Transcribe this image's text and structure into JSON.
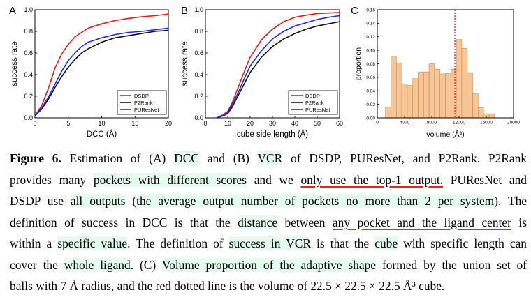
{
  "chart_data": [
    {
      "type": "line",
      "panel": "A",
      "xlabel": "DCC (Å)",
      "ylabel": "success rate",
      "xlim": [
        0,
        20
      ],
      "ylim": [
        0,
        1.0
      ],
      "xticks": [
        "0",
        "5",
        "10",
        "15",
        "20"
      ],
      "yticks": [
        "0.0",
        "0.2",
        "0.4",
        "0.6",
        "0.8",
        "1.0"
      ],
      "legend": "bottom-right",
      "series": [
        {
          "name": "DSDP",
          "color": "#e01b1b",
          "x": [
            0,
            1,
            2,
            3,
            4,
            5,
            6,
            7,
            8,
            10,
            12,
            14,
            16,
            18,
            20
          ],
          "y": [
            0.02,
            0.11,
            0.27,
            0.46,
            0.59,
            0.68,
            0.75,
            0.79,
            0.83,
            0.87,
            0.9,
            0.92,
            0.935,
            0.945,
            0.96
          ]
        },
        {
          "name": "P2Rank",
          "color": "#111111",
          "x": [
            0,
            1,
            2,
            3,
            4,
            5,
            6,
            7,
            8,
            10,
            12,
            14,
            16,
            18,
            20
          ],
          "y": [
            0.02,
            0.08,
            0.17,
            0.28,
            0.38,
            0.47,
            0.54,
            0.6,
            0.64,
            0.7,
            0.74,
            0.76,
            0.78,
            0.8,
            0.81
          ]
        },
        {
          "name": "PUResNet",
          "color": "#1f2bd6",
          "x": [
            0,
            1,
            2,
            3,
            4,
            5,
            6,
            7,
            8,
            10,
            12,
            14,
            16,
            18,
            20
          ],
          "y": [
            0.02,
            0.09,
            0.19,
            0.31,
            0.43,
            0.53,
            0.6,
            0.66,
            0.7,
            0.74,
            0.77,
            0.79,
            0.8,
            0.815,
            0.83
          ]
        }
      ]
    },
    {
      "type": "line",
      "panel": "B",
      "xlabel": "cube side length (Å)",
      "ylabel": "success rate",
      "xlim": [
        0,
        60
      ],
      "ylim": [
        0,
        1.0
      ],
      "xticks": [
        "0",
        "10",
        "20",
        "30",
        "40",
        "50",
        "60"
      ],
      "yticks": [
        "0.0",
        "0.2",
        "0.4",
        "0.6",
        "0.8",
        "1.0"
      ],
      "legend": "bottom-right",
      "series": [
        {
          "name": "DSDP",
          "color": "#e01b1b",
          "x": [
            5,
            8,
            10,
            12,
            15,
            18,
            20,
            25,
            30,
            35,
            40,
            45,
            50,
            55,
            60
          ],
          "y": [
            0,
            0.03,
            0.06,
            0.14,
            0.3,
            0.46,
            0.56,
            0.72,
            0.82,
            0.89,
            0.93,
            0.95,
            0.965,
            0.97,
            0.975
          ]
        },
        {
          "name": "P2Rank",
          "color": "#111111",
          "x": [
            5,
            8,
            10,
            12,
            15,
            18,
            20,
            25,
            30,
            35,
            40,
            45,
            50,
            55,
            60
          ],
          "y": [
            0,
            0.02,
            0.04,
            0.1,
            0.22,
            0.34,
            0.42,
            0.56,
            0.66,
            0.73,
            0.78,
            0.82,
            0.85,
            0.87,
            0.89
          ]
        },
        {
          "name": "PUResNet",
          "color": "#1f2bd6",
          "x": [
            5,
            8,
            10,
            12,
            15,
            18,
            20,
            25,
            30,
            35,
            40,
            45,
            50,
            55,
            60
          ],
          "y": [
            0,
            0.02,
            0.05,
            0.12,
            0.25,
            0.39,
            0.48,
            0.62,
            0.73,
            0.8,
            0.85,
            0.88,
            0.91,
            0.93,
            0.945
          ]
        }
      ]
    },
    {
      "type": "bar",
      "panel": "C",
      "xlabel": "volume (Å³)",
      "ylabel": "proportion",
      "xlim": [
        0,
        20000
      ],
      "ylim": [
        0,
        0.16
      ],
      "xticks": [
        "0",
        "4000",
        "8000",
        "12000",
        "16000",
        "20000"
      ],
      "yticks": [
        "0.00",
        "0.02",
        "0.04",
        "0.06",
        "0.08",
        "0.10",
        "0.12",
        "0.14",
        "0.16"
      ],
      "bin_width": 800,
      "bin_starts": [
        1200,
        2000,
        2800,
        3600,
        4400,
        5200,
        6000,
        6800,
        7600,
        8400,
        9200,
        10000,
        10800,
        11600,
        12400,
        13200,
        14000,
        14800,
        15600,
        16400
      ],
      "values": [
        0.016,
        0.091,
        0.081,
        0.05,
        0.048,
        0.058,
        0.068,
        0.068,
        0.08,
        0.072,
        0.065,
        0.066,
        0.072,
        0.116,
        0.103,
        0.067,
        0.036,
        0.015,
        0.006,
        0.006
      ],
      "bar_color": "#f7c697",
      "edge_color": "#c98a55",
      "reference_line": {
        "x": 11390.625,
        "color": "#d11414",
        "style": "dotted"
      }
    }
  ],
  "panels": {
    "a": "A",
    "b": "B",
    "c": "C"
  },
  "caption": {
    "lines": [
      [
        {
          "t": "Figure 6.",
          "b": true
        },
        {
          "t": " Estimation of (A) "
        },
        {
          "t": "DCC",
          "hl": true
        },
        {
          "t": " and (B) "
        },
        {
          "t": "VCR",
          "hl": true
        },
        {
          "t": " of DSDP, PUResNet, and P2Rank. P2Rank"
        }
      ],
      [
        {
          "t": "provides many "
        },
        {
          "t": "pockets with different scores",
          "hl": true
        },
        {
          "t": " and we "
        },
        {
          "t": "only use the top-1 output.",
          "ul": true
        },
        {
          "t": " PUResNet and"
        }
      ],
      [
        {
          "t": "DSDP use "
        },
        {
          "t": "all outputs",
          "hl": true
        },
        {
          "t": " ("
        },
        {
          "t": "the average output number of pockets no more than 2 per system",
          "hl": true
        },
        {
          "t": "). The"
        }
      ],
      [
        {
          "t": "definition of success in DCC is that the "
        },
        {
          "t": "distance",
          "hl": true
        },
        {
          "t": " between "
        },
        {
          "t": "any pocket and the ligand center",
          "ul": true
        },
        {
          "t": " is"
        }
      ],
      [
        {
          "t": "within a "
        },
        {
          "t": "specific value",
          "hl": true
        },
        {
          "t": ". The definition of "
        },
        {
          "t": "success in VCR",
          "hl": true
        },
        {
          "t": " is that the "
        },
        {
          "t": "cube",
          "hl": true
        },
        {
          "t": " with specific length can"
        }
      ],
      [
        {
          "t": "cover the "
        },
        {
          "t": "whole ligand",
          "hl": true
        },
        {
          "t": ". (C) "
        },
        {
          "t": "Volume proportion of the adaptive shape",
          "hl": true
        },
        {
          "t": " formed by the union set of"
        }
      ],
      [
        {
          "t": "balls with 7 Å radius, and the red dotted line is the volume of 22.5 × 22.5 × 22.5 Å³ cube."
        }
      ]
    ]
  }
}
